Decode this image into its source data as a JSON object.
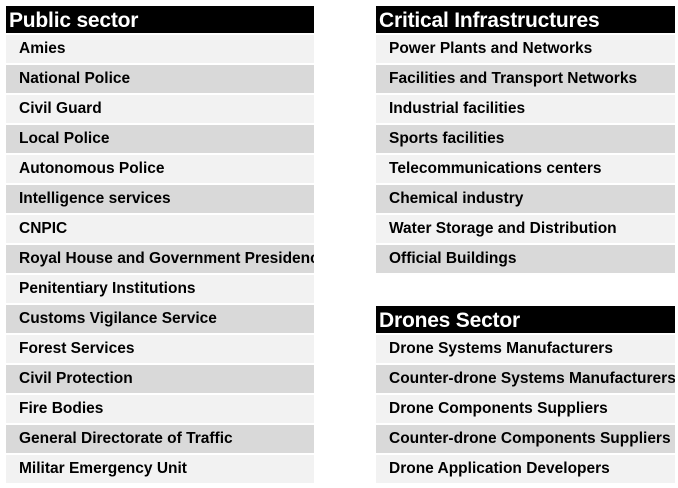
{
  "public_sector": {
    "title": "Public sector",
    "items": [
      "Amies",
      "National Police",
      "Civil Guard",
      "Local Police",
      "Autonomous Police",
      "Intelligence services",
      "CNPIC",
      "Royal House and Government Presidency",
      "Penitentiary Institutions",
      "Customs Vigilance Service",
      "Forest Services",
      "Civil Protection",
      "Fire Bodies",
      "General Directorate of Traffic",
      "Militar Emergency Unit"
    ]
  },
  "critical_infrastructures": {
    "title": "Critical Infrastructures",
    "items": [
      "Power Plants and Networks",
      "Facilities and Transport Networks",
      "Industrial facilities",
      "Sports facilities",
      "Telecommunications centers",
      "Chemical industry",
      "Water Storage and Distribution",
      "Official Buildings"
    ]
  },
  "drones_sector": {
    "title": "Drones Sector",
    "items": [
      "Drone Systems Manufacturers",
      "Counter-drone Systems Manufacturers",
      "Drone Components Suppliers",
      "Counter-drone Components Suppliers",
      "Drone Application Developers"
    ]
  },
  "colors": {
    "header_bg": "#000000",
    "row_light": "#f2f2f2",
    "row_dark": "#d9d9d9"
  }
}
